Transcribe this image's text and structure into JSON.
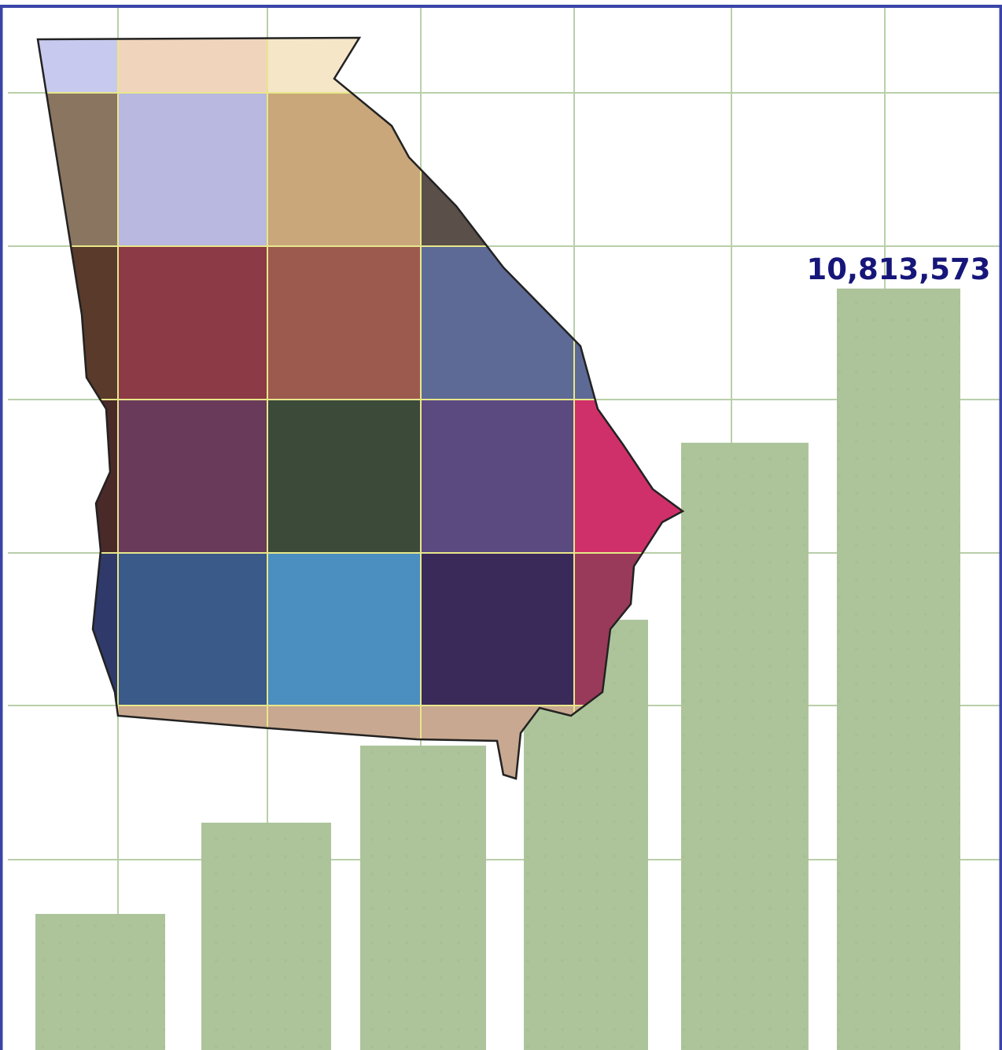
{
  "chart_data": {
    "type": "bar",
    "values": [
      1932600,
      3228400,
      4323200,
      6110500,
      8624000,
      10813573
    ],
    "value_labels": [
      null,
      null,
      null,
      null,
      null,
      "10,813,573"
    ],
    "color": "#adc49b",
    "ylim": [
      0,
      14800000
    ]
  }
}
